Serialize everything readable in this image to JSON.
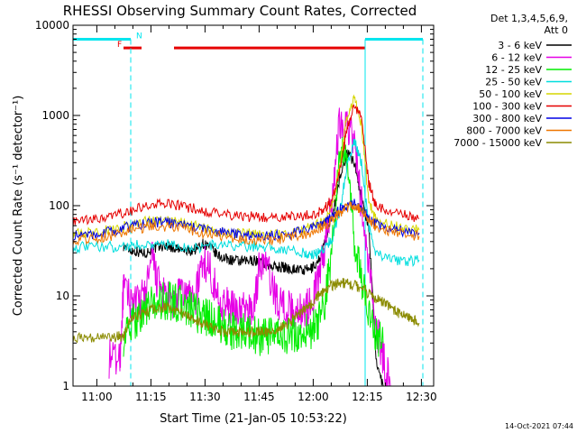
{
  "chart_data": {
    "type": "line",
    "title": "RHESSI Observing Summary Count Rates, Corrected",
    "xlabel": "Start Time (21-Jan-05 10:53:22)",
    "ylabel": "Corrected Count Rate (s⁻¹ detector⁻¹)",
    "y_scale": "log",
    "ylim": [
      1,
      10000
    ],
    "x_unit": "minutes after 10:53:22",
    "xlim": [
      0,
      100
    ],
    "x_ticks": [
      {
        "label": "11:00",
        "t": 6.6
      },
      {
        "label": "11:15",
        "t": 21.6
      },
      {
        "label": "11:30",
        "t": 36.6
      },
      {
        "label": "11:45",
        "t": 51.6
      },
      {
        "label": "12:00",
        "t": 66.6
      },
      {
        "label": "12:15",
        "t": 81.6
      },
      {
        "label": "12:30",
        "t": 96.6
      }
    ],
    "y_ticks": [
      {
        "label": "1",
        "v": 1
      },
      {
        "label": "10",
        "v": 10
      },
      {
        "label": "100",
        "v": 100
      },
      {
        "label": "1000",
        "v": 1000
      },
      {
        "label": "10000",
        "v": 10000
      }
    ],
    "legend_header": [
      "Det 1,3,4,5,6,9,",
      "Att 0"
    ],
    "legend_position": "right",
    "flags": [
      {
        "label": "N",
        "color": "#00e5ee",
        "segments": [
          [
            0,
            16
          ],
          [
            81,
            97
          ]
        ],
        "level": 7000
      },
      {
        "label": "F",
        "color": "#e60000",
        "segments": [
          [
            14,
            19
          ],
          [
            28,
            81
          ]
        ],
        "level": 5600
      }
    ],
    "series": [
      {
        "name": "3 - 6 keV",
        "color": "#000000",
        "points": [
          [
            14,
            36
          ],
          [
            16,
            32
          ],
          [
            18,
            31
          ],
          [
            20,
            30
          ],
          [
            22,
            33
          ],
          [
            24,
            35
          ],
          [
            26,
            36
          ],
          [
            28,
            34
          ],
          [
            30,
            32
          ],
          [
            32,
            31
          ],
          [
            34,
            33
          ],
          [
            36,
            38
          ],
          [
            38,
            35
          ],
          [
            40,
            28
          ],
          [
            42,
            26
          ],
          [
            44,
            25
          ],
          [
            46,
            24
          ],
          [
            48,
            24
          ],
          [
            50,
            25
          ],
          [
            52,
            24
          ],
          [
            54,
            22
          ],
          [
            56,
            21
          ],
          [
            58,
            21
          ],
          [
            60,
            20
          ],
          [
            62,
            20
          ],
          [
            64,
            19
          ],
          [
            66,
            20
          ],
          [
            68,
            24
          ],
          [
            70,
            40
          ],
          [
            72,
            80
          ],
          [
            74,
            200
          ],
          [
            76,
            400
          ],
          [
            78,
            300
          ],
          [
            80,
            120
          ],
          [
            82,
            60
          ],
          [
            84,
            2
          ],
          [
            86,
            1
          ]
        ]
      },
      {
        "name": "6 - 12 keV",
        "color": "#e600e6",
        "points": [
          [
            10,
            2
          ],
          [
            13,
            2
          ],
          [
            14,
            12
          ],
          [
            16,
            9
          ],
          [
            18,
            8
          ],
          [
            20,
            11
          ],
          [
            22,
            25
          ],
          [
            24,
            12
          ],
          [
            26,
            9
          ],
          [
            28,
            8
          ],
          [
            30,
            11
          ],
          [
            32,
            10
          ],
          [
            34,
            10
          ],
          [
            36,
            25
          ],
          [
            38,
            20
          ],
          [
            40,
            10
          ],
          [
            42,
            8
          ],
          [
            44,
            7
          ],
          [
            46,
            7
          ],
          [
            48,
            7
          ],
          [
            50,
            7
          ],
          [
            52,
            25
          ],
          [
            54,
            20
          ],
          [
            56,
            10
          ],
          [
            58,
            8
          ],
          [
            60,
            7
          ],
          [
            62,
            7
          ],
          [
            64,
            7
          ],
          [
            66,
            8
          ],
          [
            68,
            15
          ],
          [
            70,
            40
          ],
          [
            72,
            150
          ],
          [
            74,
            900
          ],
          [
            76,
            850
          ],
          [
            78,
            500
          ],
          [
            80,
            100
          ],
          [
            82,
            20
          ],
          [
            84,
            5
          ],
          [
            86,
            2
          ],
          [
            88,
            1
          ]
        ]
      },
      {
        "name": "12 - 25 keV",
        "color": "#00ee00",
        "points": [
          [
            14,
            3.5
          ],
          [
            16,
            4.5
          ],
          [
            18,
            6
          ],
          [
            20,
            7
          ],
          [
            22,
            8
          ],
          [
            24,
            8.5
          ],
          [
            26,
            9
          ],
          [
            28,
            8.5
          ],
          [
            30,
            8
          ],
          [
            32,
            7
          ],
          [
            34,
            6.5
          ],
          [
            36,
            6
          ],
          [
            38,
            5.5
          ],
          [
            40,
            5
          ],
          [
            42,
            4.5
          ],
          [
            44,
            4
          ],
          [
            46,
            4
          ],
          [
            48,
            4
          ],
          [
            50,
            3.8
          ],
          [
            52,
            3.5
          ],
          [
            54,
            3.5
          ],
          [
            56,
            3.5
          ],
          [
            58,
            3.6
          ],
          [
            60,
            3.6
          ],
          [
            62,
            3.6
          ],
          [
            64,
            3.8
          ],
          [
            66,
            4
          ],
          [
            68,
            5
          ],
          [
            70,
            9
          ],
          [
            72,
            40
          ],
          [
            74,
            400
          ],
          [
            76,
            300
          ],
          [
            78,
            40
          ],
          [
            80,
            15
          ],
          [
            82,
            7
          ],
          [
            84,
            3.5
          ],
          [
            86,
            3
          ]
        ]
      },
      {
        "name": "25 - 50 keV",
        "color": "#00dede",
        "points": [
          [
            0,
            34
          ],
          [
            4,
            35
          ],
          [
            8,
            35
          ],
          [
            12,
            35
          ],
          [
            16,
            36
          ],
          [
            20,
            37
          ],
          [
            24,
            38
          ],
          [
            28,
            36
          ],
          [
            32,
            34
          ],
          [
            36,
            35
          ],
          [
            40,
            37
          ],
          [
            44,
            36
          ],
          [
            48,
            35
          ],
          [
            52,
            36
          ],
          [
            56,
            34
          ],
          [
            60,
            32
          ],
          [
            64,
            30
          ],
          [
            66,
            28
          ],
          [
            68,
            30
          ],
          [
            70,
            35
          ],
          [
            72,
            45
          ],
          [
            74,
            90
          ],
          [
            76,
            280
          ],
          [
            78,
            520
          ],
          [
            80,
            300
          ],
          [
            82,
            60
          ],
          [
            84,
            30
          ],
          [
            88,
            25
          ],
          [
            92,
            24
          ],
          [
            96,
            25
          ]
        ]
      },
      {
        "name": "50 - 100 keV",
        "color": "#d6d600",
        "points": [
          [
            0,
            48
          ],
          [
            4,
            50
          ],
          [
            8,
            52
          ],
          [
            12,
            55
          ],
          [
            16,
            62
          ],
          [
            20,
            67
          ],
          [
            24,
            68
          ],
          [
            28,
            66
          ],
          [
            32,
            62
          ],
          [
            36,
            56
          ],
          [
            40,
            52
          ],
          [
            44,
            50
          ],
          [
            48,
            49
          ],
          [
            52,
            48
          ],
          [
            56,
            48
          ],
          [
            60,
            50
          ],
          [
            64,
            55
          ],
          [
            68,
            62
          ],
          [
            70,
            70
          ],
          [
            72,
            100
          ],
          [
            74,
            300
          ],
          [
            76,
            1000
          ],
          [
            78,
            1500
          ],
          [
            80,
            800
          ],
          [
            82,
            110
          ],
          [
            84,
            70
          ],
          [
            88,
            60
          ],
          [
            92,
            56
          ],
          [
            96,
            54
          ]
        ]
      },
      {
        "name": "100 - 300 keV",
        "color": "#e60000",
        "points": [
          [
            0,
            66
          ],
          [
            4,
            68
          ],
          [
            8,
            72
          ],
          [
            12,
            78
          ],
          [
            16,
            88
          ],
          [
            20,
            98
          ],
          [
            24,
            104
          ],
          [
            28,
            102
          ],
          [
            32,
            95
          ],
          [
            36,
            88
          ],
          [
            40,
            82
          ],
          [
            44,
            78
          ],
          [
            48,
            76
          ],
          [
            52,
            75
          ],
          [
            56,
            75
          ],
          [
            60,
            76
          ],
          [
            64,
            78
          ],
          [
            68,
            85
          ],
          [
            70,
            95
          ],
          [
            72,
            120
          ],
          [
            74,
            250
          ],
          [
            76,
            700
          ],
          [
            78,
            1300
          ],
          [
            80,
            900
          ],
          [
            82,
            180
          ],
          [
            84,
            100
          ],
          [
            88,
            85
          ],
          [
            92,
            78
          ],
          [
            96,
            72
          ]
        ]
      },
      {
        "name": "300 - 800 keV",
        "color": "#0000e6",
        "points": [
          [
            0,
            46
          ],
          [
            4,
            48
          ],
          [
            8,
            50
          ],
          [
            12,
            53
          ],
          [
            16,
            60
          ],
          [
            20,
            64
          ],
          [
            24,
            66
          ],
          [
            28,
            64
          ],
          [
            32,
            60
          ],
          [
            36,
            56
          ],
          [
            40,
            52
          ],
          [
            44,
            49
          ],
          [
            48,
            48
          ],
          [
            52,
            47
          ],
          [
            56,
            47
          ],
          [
            60,
            49
          ],
          [
            64,
            53
          ],
          [
            68,
            60
          ],
          [
            70,
            65
          ],
          [
            72,
            75
          ],
          [
            74,
            90
          ],
          [
            76,
            100
          ],
          [
            78,
            105
          ],
          [
            80,
            95
          ],
          [
            82,
            75
          ],
          [
            84,
            62
          ],
          [
            88,
            56
          ],
          [
            92,
            52
          ],
          [
            96,
            50
          ]
        ]
      },
      {
        "name": "800 - 7000 keV",
        "color": "#ee7600",
        "points": [
          [
            0,
            42
          ],
          [
            4,
            43
          ],
          [
            8,
            45
          ],
          [
            12,
            48
          ],
          [
            16,
            54
          ],
          [
            20,
            58
          ],
          [
            24,
            60
          ],
          [
            28,
            58
          ],
          [
            32,
            55
          ],
          [
            36,
            50
          ],
          [
            40,
            47
          ],
          [
            44,
            44
          ],
          [
            48,
            43
          ],
          [
            52,
            42
          ],
          [
            56,
            42
          ],
          [
            60,
            44
          ],
          [
            64,
            48
          ],
          [
            68,
            55
          ],
          [
            70,
            60
          ],
          [
            72,
            70
          ],
          [
            74,
            85
          ],
          [
            76,
            95
          ],
          [
            78,
            100
          ],
          [
            80,
            90
          ],
          [
            82,
            70
          ],
          [
            84,
            58
          ],
          [
            88,
            52
          ],
          [
            92,
            48
          ],
          [
            96,
            46
          ]
        ]
      },
      {
        "name": "7000 - 15000 keV",
        "color": "#8b8b00",
        "points": [
          [
            0,
            3.5
          ],
          [
            4,
            3.5
          ],
          [
            8,
            3.5
          ],
          [
            12,
            3.5
          ],
          [
            14,
            3.6
          ],
          [
            16,
            5.5
          ],
          [
            18,
            6
          ],
          [
            20,
            6.5
          ],
          [
            22,
            7
          ],
          [
            24,
            7.2
          ],
          [
            26,
            7.5
          ],
          [
            28,
            7
          ],
          [
            30,
            6.5
          ],
          [
            32,
            6
          ],
          [
            34,
            5.5
          ],
          [
            36,
            5
          ],
          [
            38,
            4.5
          ],
          [
            40,
            4.2
          ],
          [
            42,
            4
          ],
          [
            44,
            4
          ],
          [
            46,
            4
          ],
          [
            48,
            4
          ],
          [
            50,
            4
          ],
          [
            52,
            4
          ],
          [
            54,
            4
          ],
          [
            56,
            4.2
          ],
          [
            58,
            4.5
          ],
          [
            60,
            5
          ],
          [
            62,
            6
          ],
          [
            64,
            7
          ],
          [
            66,
            8
          ],
          [
            68,
            10
          ],
          [
            70,
            12
          ],
          [
            72,
            13
          ],
          [
            74,
            14
          ],
          [
            76,
            14
          ],
          [
            78,
            13
          ],
          [
            80,
            12
          ],
          [
            82,
            10.5
          ],
          [
            84,
            9.5
          ],
          [
            86,
            8.5
          ],
          [
            88,
            7.5
          ],
          [
            90,
            6.5
          ],
          [
            92,
            6
          ],
          [
            94,
            5.5
          ],
          [
            96,
            5
          ]
        ]
      }
    ]
  },
  "footer": {
    "date": "14-Oct-2021 07:44"
  }
}
